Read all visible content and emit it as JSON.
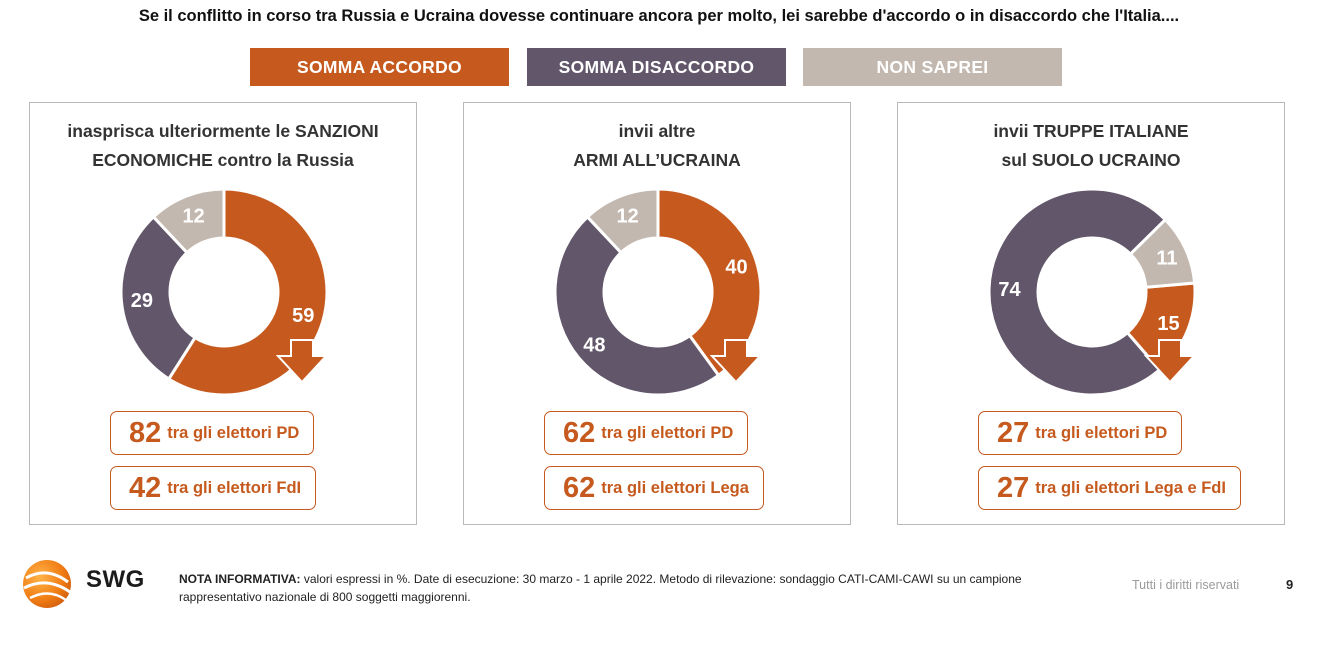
{
  "title": "Se il conflitto in corso tra Russia e Ucraina dovesse continuare ancora per molto, lei sarebbe d'accordo o in disaccordo che l'Italia....",
  "legend": [
    {
      "label": "SOMMA ACCORDO",
      "color": "#c65a1e"
    },
    {
      "label": "SOMMA DISACCORDO",
      "color": "#62566b"
    },
    {
      "label": "NON SAPREI",
      "color": "#c2b8b0"
    }
  ],
  "chart_data": [
    {
      "type": "pie",
      "title_lines": [
        "inasprisca ulteriormente le SANZIONI",
        "ECONOMICHE contro la Russia"
      ],
      "slices": [
        {
          "label": "SOMMA ACCORDO",
          "value": 59,
          "color": "#c65a1e"
        },
        {
          "label": "SOMMA DISACCORDO",
          "value": 29,
          "color": "#62566b"
        },
        {
          "label": "NON SAPREI",
          "value": 12,
          "color": "#c2b8b0"
        }
      ],
      "start_angle_deg": 0,
      "stats": [
        {
          "value": "82",
          "text": "tra gli elettori PD"
        },
        {
          "value": "42",
          "text": "tra gli elettori FdI"
        }
      ]
    },
    {
      "type": "pie",
      "title_lines": [
        "invii altre",
        "ARMI ALL’UCRAINA"
      ],
      "slices": [
        {
          "label": "SOMMA ACCORDO",
          "value": 40,
          "color": "#c65a1e"
        },
        {
          "label": "SOMMA DISACCORDO",
          "value": 48,
          "color": "#62566b"
        },
        {
          "label": "NON SAPREI",
          "value": 12,
          "color": "#c2b8b0"
        }
      ],
      "start_angle_deg": 0,
      "stats": [
        {
          "value": "62",
          "text": "tra gli elettori PD"
        },
        {
          "value": "62",
          "text": "tra gli elettori Lega"
        }
      ]
    },
    {
      "type": "pie",
      "title_lines": [
        "invii TRUPPE ITALIANE",
        "sul SUOLO UCRAINO"
      ],
      "slices": [
        {
          "label": "SOMMA ACCORDO",
          "value": 15,
          "color": "#c65a1e"
        },
        {
          "label": "SOMMA DISACCORDO",
          "value": 74,
          "color": "#62566b"
        },
        {
          "label": "NON SAPREI",
          "value": 11,
          "color": "#c2b8b0"
        }
      ],
      "start_angle_deg": 85,
      "stats": [
        {
          "value": "27",
          "text": "tra gli elettori PD"
        },
        {
          "value": "27",
          "text": "tra gli elettori Lega e FdI"
        }
      ]
    }
  ],
  "footer": {
    "brand": "SWG",
    "note_label": "NOTA INFORMATIVA:",
    "note_text": " valori espressi in %. Date di esecuzione: 30 marzo - 1 aprile 2022. Metodo di rilevazione: sondaggio CATI-CAMI-CAWI su un campione rappresentativo nazionale di 800 soggetti maggiorenni.",
    "rights": "Tutti i diritti riservati",
    "page": "9"
  }
}
